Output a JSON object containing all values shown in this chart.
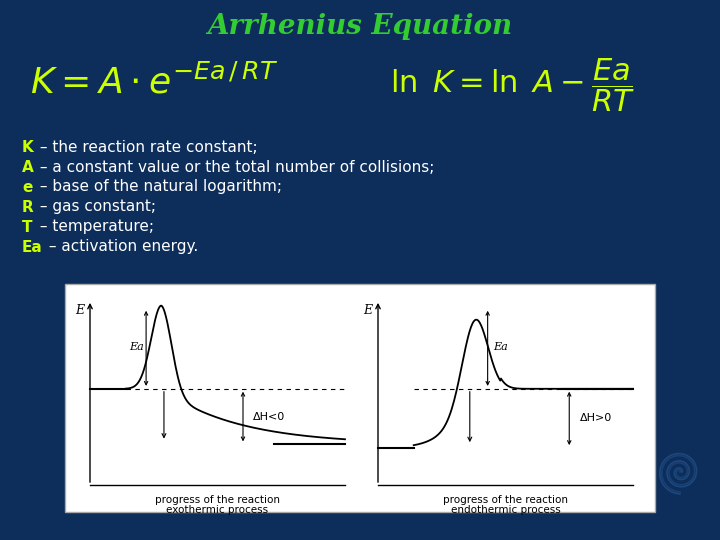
{
  "title": "Arrhenius Equation",
  "title_color": "#33cc33",
  "bg_color": "#0d2d5a",
  "yellow_color": "#ccff00",
  "white_color": "#ffffff",
  "legend_lines": [
    {
      "letter": "K",
      "rest": " – the reaction rate constant;"
    },
    {
      "letter": "A",
      "rest": " – a constant value or the total number of collisions;"
    },
    {
      "letter": "e",
      "rest": " – base of the natural logarithm;"
    },
    {
      "letter": "R",
      "rest": " – gas constant;"
    },
    {
      "letter": "T",
      "rest": " – temperature;"
    },
    {
      "letter": "Ea",
      "rest": " – activation energy."
    }
  ]
}
